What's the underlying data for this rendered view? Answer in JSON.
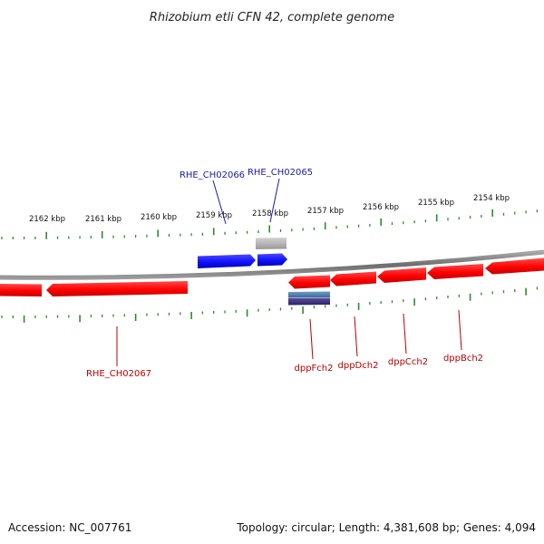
{
  "title": "Rhizobium etli CFN 42, complete genome",
  "accession_text": "Accession: NC_007761",
  "stats_text": "Topology: circular; Length: 4,381,608 bp; Genes: 4,094",
  "colors": {
    "backbone": "#808080",
    "tick": "#2e8b2e",
    "forward_gene": "#1a1aff",
    "reverse_gene": "#ff0000",
    "gray_feature": "#b5b5b5",
    "label_forward": "#1a1aaa",
    "label_reverse": "#bb0000",
    "rna_feature": "#4f7fae"
  },
  "scale_labels": [
    "2162 kbp",
    "2161 kbp",
    "2160 kbp",
    "2159 kbp",
    "2158 kbp",
    "2157 kbp",
    "2156 kbp",
    "2155 kbp",
    "2154 kbp"
  ],
  "gene_labels": {
    "rhe_ch02066": "RHE_CH02066",
    "rhe_ch02065": "RHE_CH02065",
    "rhe_ch02067": "RHE_CH02067",
    "dppf": "dppFch2",
    "dppd": "dppDch2",
    "dppc": "dppCch2",
    "dppb": "dppBch2"
  }
}
